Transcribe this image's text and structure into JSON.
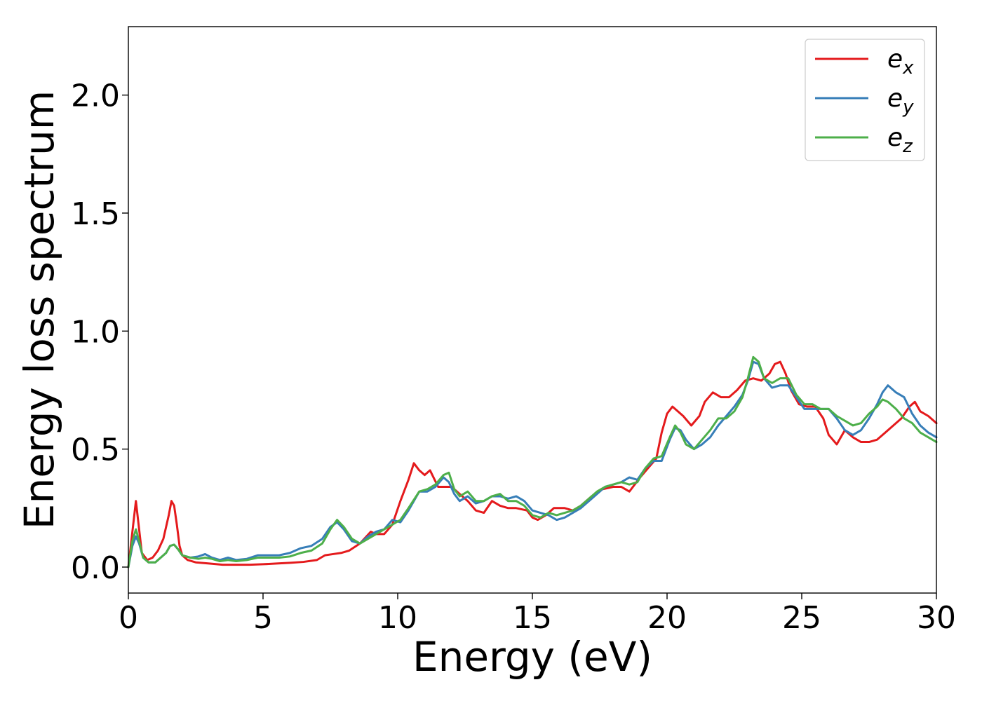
{
  "chart_data": {
    "type": "line",
    "title": "",
    "xlabel": "Energy (eV)",
    "ylabel": "Energy loss spectrum",
    "xlim": [
      0,
      30
    ],
    "ylim": [
      -0.11,
      2.29
    ],
    "xticks": [
      0,
      5,
      10,
      15,
      20,
      25,
      30
    ],
    "xtick_labels": [
      "0",
      "5",
      "10",
      "15",
      "20",
      "25",
      "30"
    ],
    "yticks": [
      0.0,
      0.5,
      1.0,
      1.5,
      2.0
    ],
    "ytick_labels": [
      "0.0",
      "0.5",
      "1.0",
      "1.5",
      "2.0"
    ],
    "grid": false,
    "legend": {
      "position": "top-right"
    },
    "series": [
      {
        "name": "e_x",
        "legend_base": "e",
        "legend_sub": "x",
        "color": "#e41a1c",
        "x": [
          0.0,
          0.15,
          0.28,
          0.38,
          0.5,
          0.7,
          0.9,
          1.1,
          1.3,
          1.5,
          1.6,
          1.7,
          1.8,
          1.9,
          2.0,
          2.2,
          2.5,
          3.0,
          3.5,
          4.0,
          4.5,
          5.0,
          5.5,
          6.0,
          6.5,
          7.0,
          7.3,
          7.6,
          7.9,
          8.2,
          8.6,
          9.0,
          9.2,
          9.5,
          9.8,
          10.1,
          10.4,
          10.6,
          10.8,
          11.0,
          11.2,
          11.5,
          12.0,
          12.3,
          12.6,
          12.9,
          13.2,
          13.5,
          13.8,
          14.1,
          14.4,
          14.8,
          15.0,
          15.2,
          15.5,
          15.8,
          16.2,
          16.5,
          16.8,
          17.2,
          17.6,
          18.0,
          18.3,
          18.6,
          19.0,
          19.3,
          19.6,
          19.8,
          20.0,
          20.2,
          20.4,
          20.6,
          20.9,
          21.2,
          21.4,
          21.7,
          22.0,
          22.3,
          22.6,
          22.9,
          23.2,
          23.5,
          23.8,
          24.0,
          24.2,
          24.4,
          24.6,
          24.9,
          25.2,
          25.5,
          25.8,
          26.0,
          26.3,
          26.6,
          26.9,
          27.2,
          27.5,
          27.8,
          28.1,
          28.4,
          28.7,
          29.0,
          29.2,
          29.4,
          29.7,
          30.0
        ],
        "y": [
          0.0,
          0.15,
          0.28,
          0.18,
          0.06,
          0.03,
          0.04,
          0.07,
          0.12,
          0.22,
          0.28,
          0.26,
          0.18,
          0.09,
          0.05,
          0.03,
          0.02,
          0.015,
          0.01,
          0.01,
          0.01,
          0.012,
          0.015,
          0.018,
          0.022,
          0.03,
          0.05,
          0.055,
          0.06,
          0.07,
          0.1,
          0.15,
          0.14,
          0.14,
          0.18,
          0.28,
          0.37,
          0.44,
          0.41,
          0.39,
          0.41,
          0.34,
          0.34,
          0.31,
          0.28,
          0.24,
          0.23,
          0.28,
          0.26,
          0.25,
          0.25,
          0.24,
          0.21,
          0.2,
          0.22,
          0.25,
          0.25,
          0.24,
          0.26,
          0.3,
          0.33,
          0.34,
          0.34,
          0.32,
          0.38,
          0.42,
          0.46,
          0.57,
          0.65,
          0.68,
          0.66,
          0.64,
          0.6,
          0.64,
          0.7,
          0.74,
          0.72,
          0.72,
          0.75,
          0.79,
          0.8,
          0.79,
          0.82,
          0.86,
          0.87,
          0.82,
          0.75,
          0.69,
          0.68,
          0.68,
          0.63,
          0.56,
          0.52,
          0.58,
          0.55,
          0.53,
          0.53,
          0.54,
          0.57,
          0.6,
          0.63,
          0.68,
          0.7,
          0.66,
          0.64,
          0.61
        ]
      },
      {
        "name": "e_y",
        "legend_base": "e",
        "legend_sub": "y",
        "color": "#377eb8",
        "x": [
          0.0,
          0.15,
          0.28,
          0.4,
          0.55,
          0.75,
          1.0,
          1.2,
          1.4,
          1.55,
          1.7,
          1.85,
          2.0,
          2.3,
          2.6,
          2.85,
          3.1,
          3.4,
          3.7,
          4.0,
          4.4,
          4.8,
          5.2,
          5.6,
          6.0,
          6.4,
          6.8,
          7.2,
          7.5,
          7.75,
          8.0,
          8.3,
          8.6,
          8.9,
          9.2,
          9.5,
          9.8,
          10.1,
          10.4,
          10.8,
          11.1,
          11.4,
          11.7,
          11.9,
          12.1,
          12.3,
          12.6,
          12.9,
          13.2,
          13.5,
          13.8,
          14.1,
          14.4,
          14.7,
          15.0,
          15.3,
          15.6,
          15.9,
          16.2,
          16.5,
          16.8,
          17.1,
          17.4,
          17.7,
          18.0,
          18.3,
          18.6,
          18.9,
          19.2,
          19.5,
          19.8,
          20.1,
          20.3,
          20.5,
          20.7,
          21.0,
          21.3,
          21.6,
          21.9,
          22.2,
          22.5,
          22.8,
          23.0,
          23.2,
          23.4,
          23.6,
          23.9,
          24.2,
          24.5,
          24.8,
          25.1,
          25.4,
          25.7,
          26.0,
          26.3,
          26.6,
          26.9,
          27.2,
          27.5,
          27.8,
          28.0,
          28.2,
          28.5,
          28.8,
          29.1,
          29.4,
          29.7,
          30.0
        ],
        "y": [
          0.0,
          0.09,
          0.13,
          0.1,
          0.04,
          0.02,
          0.02,
          0.04,
          0.06,
          0.09,
          0.095,
          0.075,
          0.05,
          0.04,
          0.045,
          0.055,
          0.04,
          0.03,
          0.04,
          0.03,
          0.035,
          0.05,
          0.05,
          0.05,
          0.06,
          0.08,
          0.09,
          0.12,
          0.17,
          0.19,
          0.16,
          0.11,
          0.1,
          0.13,
          0.15,
          0.16,
          0.2,
          0.19,
          0.24,
          0.32,
          0.32,
          0.34,
          0.38,
          0.36,
          0.31,
          0.28,
          0.3,
          0.27,
          0.28,
          0.3,
          0.3,
          0.29,
          0.3,
          0.28,
          0.24,
          0.23,
          0.22,
          0.2,
          0.21,
          0.23,
          0.25,
          0.28,
          0.31,
          0.34,
          0.35,
          0.36,
          0.38,
          0.37,
          0.42,
          0.45,
          0.45,
          0.54,
          0.59,
          0.58,
          0.54,
          0.5,
          0.52,
          0.55,
          0.6,
          0.64,
          0.68,
          0.73,
          0.79,
          0.87,
          0.86,
          0.8,
          0.76,
          0.77,
          0.77,
          0.72,
          0.67,
          0.67,
          0.67,
          0.67,
          0.63,
          0.58,
          0.56,
          0.58,
          0.63,
          0.69,
          0.74,
          0.77,
          0.74,
          0.72,
          0.65,
          0.6,
          0.57,
          0.55
        ]
      },
      {
        "name": "e_z",
        "legend_base": "e",
        "legend_sub": "z",
        "color": "#4daf4a",
        "x": [
          0.0,
          0.15,
          0.28,
          0.4,
          0.55,
          0.75,
          1.0,
          1.2,
          1.4,
          1.55,
          1.7,
          1.85,
          2.0,
          2.3,
          2.6,
          2.85,
          3.1,
          3.4,
          3.7,
          4.0,
          4.4,
          4.8,
          5.2,
          5.6,
          6.0,
          6.4,
          6.8,
          7.2,
          7.5,
          7.75,
          8.0,
          8.3,
          8.6,
          8.9,
          9.2,
          9.5,
          9.8,
          10.1,
          10.4,
          10.8,
          11.1,
          11.4,
          11.7,
          11.9,
          12.1,
          12.3,
          12.6,
          12.9,
          13.2,
          13.5,
          13.8,
          14.1,
          14.4,
          14.7,
          15.0,
          15.3,
          15.6,
          15.9,
          16.2,
          16.5,
          16.8,
          17.1,
          17.4,
          17.7,
          18.0,
          18.3,
          18.6,
          18.9,
          19.2,
          19.5,
          19.8,
          20.1,
          20.3,
          20.5,
          20.7,
          21.0,
          21.3,
          21.6,
          21.9,
          22.2,
          22.5,
          22.8,
          23.0,
          23.2,
          23.4,
          23.6,
          23.9,
          24.2,
          24.5,
          24.8,
          25.1,
          25.4,
          25.7,
          26.0,
          26.3,
          26.6,
          26.9,
          27.2,
          27.5,
          27.8,
          28.0,
          28.2,
          28.5,
          28.8,
          29.1,
          29.4,
          29.7,
          30.0
        ],
        "y": [
          0.0,
          0.11,
          0.16,
          0.11,
          0.04,
          0.02,
          0.02,
          0.04,
          0.06,
          0.09,
          0.095,
          0.075,
          0.05,
          0.04,
          0.035,
          0.04,
          0.035,
          0.025,
          0.03,
          0.025,
          0.03,
          0.04,
          0.04,
          0.04,
          0.045,
          0.06,
          0.07,
          0.1,
          0.16,
          0.2,
          0.17,
          0.12,
          0.1,
          0.12,
          0.14,
          0.16,
          0.18,
          0.2,
          0.25,
          0.32,
          0.33,
          0.35,
          0.39,
          0.4,
          0.33,
          0.3,
          0.32,
          0.28,
          0.28,
          0.3,
          0.31,
          0.28,
          0.28,
          0.26,
          0.22,
          0.21,
          0.23,
          0.22,
          0.23,
          0.24,
          0.26,
          0.29,
          0.32,
          0.34,
          0.35,
          0.36,
          0.35,
          0.36,
          0.42,
          0.46,
          0.47,
          0.55,
          0.6,
          0.57,
          0.52,
          0.5,
          0.54,
          0.58,
          0.63,
          0.63,
          0.66,
          0.72,
          0.8,
          0.89,
          0.87,
          0.8,
          0.78,
          0.8,
          0.8,
          0.73,
          0.69,
          0.69,
          0.67,
          0.67,
          0.64,
          0.62,
          0.6,
          0.61,
          0.65,
          0.68,
          0.71,
          0.7,
          0.67,
          0.63,
          0.61,
          0.57,
          0.55,
          0.53
        ]
      }
    ]
  }
}
